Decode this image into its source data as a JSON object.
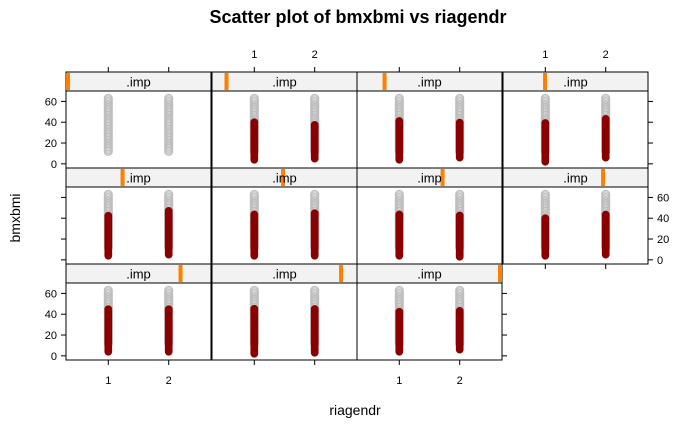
{
  "colors": {
    "observed": "#bebebe",
    "imputed": "#8b0000",
    "strip_bg": "#f2f2f2",
    "strip_indicator": "#ff7f00",
    "frame": "#000000"
  },
  "chart_data": {
    "type": "scatter",
    "title": "Scatter plot of bmxbmi vs riagendr",
    "xlabel": "riagendr",
    "ylabel": "bmxbmi",
    "x_ticks": [
      1,
      2
    ],
    "y_ticks": [
      0,
      20,
      40,
      60
    ],
    "xlim": [
      0.3,
      2.7
    ],
    "ylim": [
      -4,
      70
    ],
    "observed": {
      "min": 12,
      "max": 63
    },
    "panels": [
      {
        "strip": ".imp",
        "imputation": 0,
        "indicator_frac": 0.01,
        "imputed": null
      },
      {
        "strip": ".imp",
        "imputation": 1,
        "indicator_frac": 0.1,
        "imputed": {
          "x1": [
            4,
            40
          ],
          "x2": [
            5,
            38
          ]
        }
      },
      {
        "strip": ".imp",
        "imputation": 2,
        "indicator_frac": 0.19,
        "imputed": {
          "x1": [
            4,
            42
          ],
          "x2": [
            6,
            40
          ]
        }
      },
      {
        "strip": ".imp",
        "imputation": 3,
        "indicator_frac": 0.29,
        "imputed": {
          "x1": [
            2,
            40
          ],
          "x2": [
            6,
            44
          ]
        }
      },
      {
        "strip": ".imp",
        "imputation": 4,
        "indicator_frac": 0.39,
        "imputed": {
          "x1": [
            4,
            43
          ],
          "x2": [
            5,
            48
          ]
        }
      },
      {
        "strip": ".imp",
        "imputation": 5,
        "indicator_frac": 0.49,
        "imputed": {
          "x1": [
            4,
            44
          ],
          "x2": [
            4,
            45
          ]
        }
      },
      {
        "strip": ".imp",
        "imputation": 6,
        "indicator_frac": 0.59,
        "imputed": {
          "x1": [
            4,
            44
          ],
          "x2": [
            3,
            43
          ]
        }
      },
      {
        "strip": ".imp",
        "imputation": 7,
        "indicator_frac": 0.69,
        "imputed": {
          "x1": [
            4,
            40
          ],
          "x2": [
            5,
            44
          ]
        }
      },
      {
        "strip": ".imp",
        "imputation": 8,
        "indicator_frac": 0.79,
        "imputed": {
          "x1": [
            4,
            45
          ],
          "x2": [
            4,
            45
          ]
        }
      },
      {
        "strip": ".imp",
        "imputation": 9,
        "indicator_frac": 0.89,
        "imputed": {
          "x1": [
            2,
            46
          ],
          "x2": [
            3,
            45
          ]
        }
      },
      {
        "strip": ".imp",
        "imputation": 10,
        "indicator_frac": 0.995,
        "imputed": {
          "x1": [
            4,
            43
          ],
          "x2": [
            6,
            44
          ]
        }
      }
    ]
  }
}
